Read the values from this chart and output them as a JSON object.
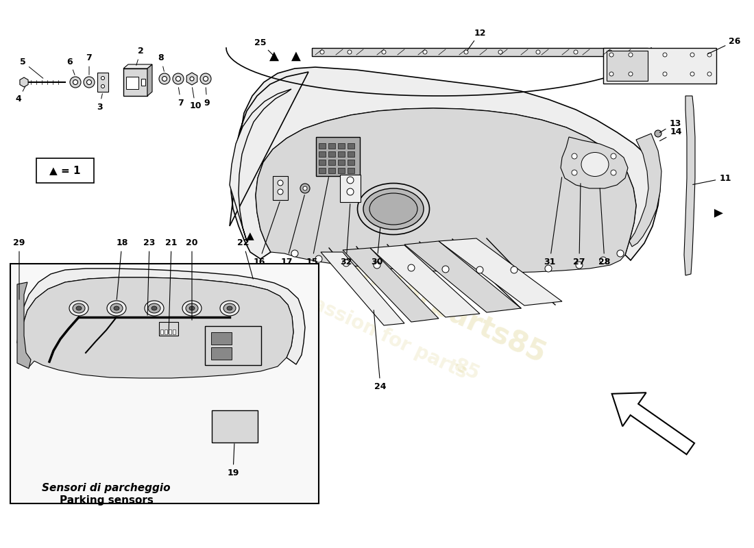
{
  "background_color": "#ffffff",
  "line_color": "#000000",
  "watermark_color": "#c8b84a",
  "diagram_gray": "#d8d8d8",
  "diagram_dark": "#b0b0b0",
  "diagram_light": "#eeeeee",
  "inset_label_top": "Sensori di parcheggio",
  "inset_label_bottom": "Parking sensors",
  "legend_text": "▲ = 1"
}
